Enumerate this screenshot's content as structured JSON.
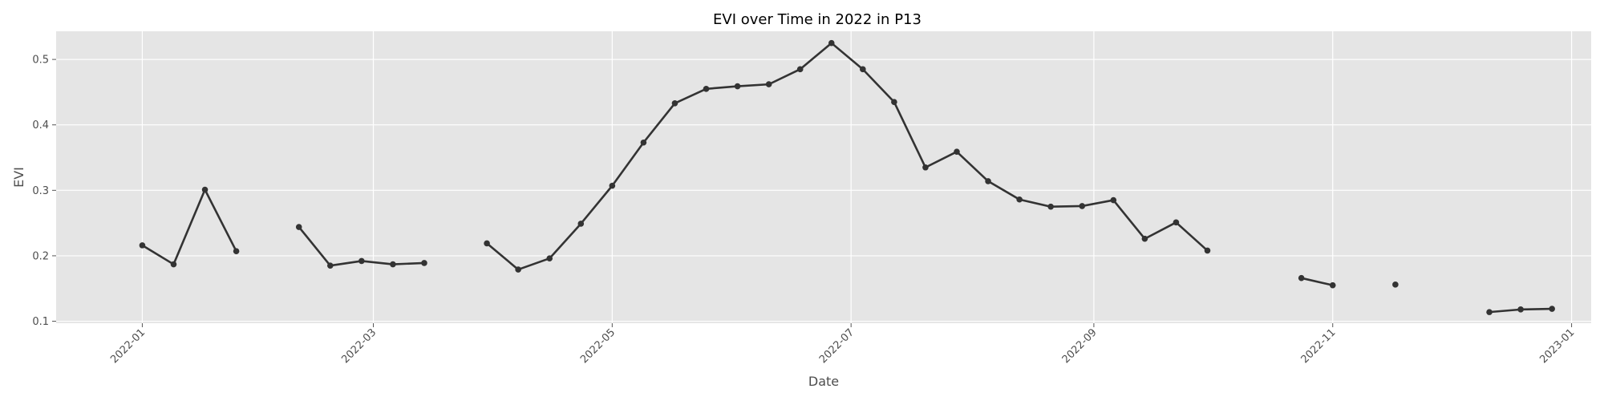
{
  "chart_data": {
    "type": "line",
    "title": "EVI over Time in 2022 in P13",
    "xlabel": "Date",
    "ylabel": "EVI",
    "xlim": [
      "2021-12-10",
      "2023-01-06"
    ],
    "ylim": [
      0.097,
      0.543
    ],
    "x_ticks": [
      "2022-01",
      "2022-03",
      "2022-05",
      "2022-07",
      "2022-09",
      "2022-11",
      "2023-01"
    ],
    "y_ticks": [
      0.1,
      0.2,
      0.3,
      0.4,
      0.5
    ],
    "grid": true,
    "colors": {
      "background": "#e5e5e5",
      "line": "#333333",
      "grid": "#ffffff"
    },
    "segments": [
      [
        {
          "x": "2022-01-01",
          "y": 0.216
        },
        {
          "x": "2022-01-09",
          "y": 0.187
        },
        {
          "x": "2022-01-17",
          "y": 0.301
        },
        {
          "x": "2022-01-25",
          "y": 0.207
        }
      ],
      [
        {
          "x": "2022-02-10",
          "y": 0.244
        },
        {
          "x": "2022-02-18",
          "y": 0.185
        },
        {
          "x": "2022-02-26",
          "y": 0.192
        },
        {
          "x": "2022-03-06",
          "y": 0.187
        },
        {
          "x": "2022-03-14",
          "y": 0.189
        }
      ],
      [
        {
          "x": "2022-03-30",
          "y": 0.219
        },
        {
          "x": "2022-04-07",
          "y": 0.179
        },
        {
          "x": "2022-04-15",
          "y": 0.196
        },
        {
          "x": "2022-04-23",
          "y": 0.249
        },
        {
          "x": "2022-05-01",
          "y": 0.307
        },
        {
          "x": "2022-05-09",
          "y": 0.373
        },
        {
          "x": "2022-05-17",
          "y": 0.433
        },
        {
          "x": "2022-05-25",
          "y": 0.455
        },
        {
          "x": "2022-06-02",
          "y": 0.459
        },
        {
          "x": "2022-06-10",
          "y": 0.462
        },
        {
          "x": "2022-06-18",
          "y": 0.485
        },
        {
          "x": "2022-06-26",
          "y": 0.525
        },
        {
          "x": "2022-07-04",
          "y": 0.485
        },
        {
          "x": "2022-07-12",
          "y": 0.435
        },
        {
          "x": "2022-07-20",
          "y": 0.335
        },
        {
          "x": "2022-07-28",
          "y": 0.359
        },
        {
          "x": "2022-08-05",
          "y": 0.314
        },
        {
          "x": "2022-08-13",
          "y": 0.286
        },
        {
          "x": "2022-08-21",
          "y": 0.275
        },
        {
          "x": "2022-08-29",
          "y": 0.276
        },
        {
          "x": "2022-09-06",
          "y": 0.285
        },
        {
          "x": "2022-09-14",
          "y": 0.226
        },
        {
          "x": "2022-09-22",
          "y": 0.251
        },
        {
          "x": "2022-09-30",
          "y": 0.208
        }
      ],
      [
        {
          "x": "2022-10-24",
          "y": 0.166
        },
        {
          "x": "2022-11-01",
          "y": 0.155
        }
      ],
      [
        {
          "x": "2022-11-17",
          "y": 0.156
        }
      ],
      [
        {
          "x": "2022-12-11",
          "y": 0.114
        },
        {
          "x": "2022-12-19",
          "y": 0.118
        },
        {
          "x": "2022-12-27",
          "y": 0.119
        }
      ]
    ]
  }
}
